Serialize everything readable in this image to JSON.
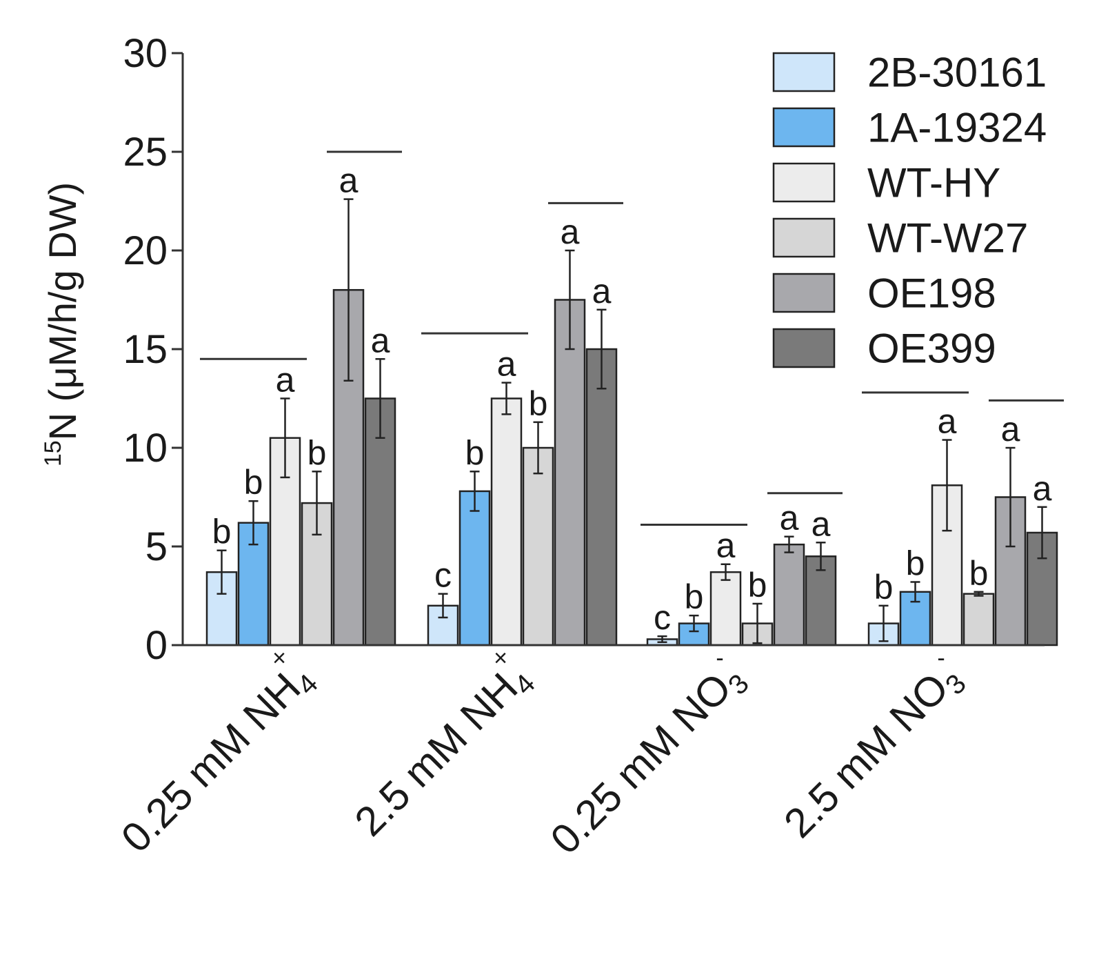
{
  "chart_data": {
    "type": "bar",
    "ylabel_sup": "15",
    "ylabel_main": "N (μM/h/g DW)",
    "ylim": [
      0,
      30
    ],
    "yticks": [
      0,
      5,
      10,
      15,
      20,
      25,
      30
    ],
    "categories": [
      {
        "prefix": "0.25 mM NH",
        "sub": "4",
        "sup": "+"
      },
      {
        "prefix": "2.5 mM NH",
        "sub": "4",
        "sup": "+"
      },
      {
        "prefix": "0.25 mM NO",
        "sub": "3",
        "sup": "-"
      },
      {
        "prefix": "2.5 mM NO",
        "sub": "3",
        "sup": "-"
      }
    ],
    "series": [
      {
        "name": "2B-30161",
        "color": "#cfe6fa",
        "values": [
          3.7,
          2.0,
          0.3,
          1.1
        ],
        "errors": [
          1.1,
          0.6,
          0.15,
          0.9
        ],
        "letters": [
          "b",
          "c",
          "c",
          "b"
        ]
      },
      {
        "name": "1A-19324",
        "color": "#6db6ef",
        "values": [
          6.2,
          7.8,
          1.1,
          2.7
        ],
        "errors": [
          1.1,
          1.0,
          0.4,
          0.5
        ],
        "letters": [
          "b",
          "b",
          "b",
          "b"
        ]
      },
      {
        "name": "WT-HY",
        "color": "#ececec",
        "values": [
          10.5,
          12.5,
          3.7,
          8.1
        ],
        "errors": [
          2.0,
          0.8,
          0.4,
          2.3
        ],
        "letters": [
          "a",
          "a",
          "a",
          "a"
        ]
      },
      {
        "name": "WT-W27",
        "color": "#d6d6d6",
        "values": [
          7.2,
          10.0,
          1.1,
          2.6
        ],
        "errors": [
          1.6,
          1.3,
          1.0,
          0.1
        ],
        "letters": [
          "b",
          "b",
          "b",
          "b"
        ]
      },
      {
        "name": "OE198",
        "color": "#a8a8ac",
        "values": [
          18.0,
          17.5,
          5.1,
          7.5
        ],
        "errors": [
          4.6,
          2.5,
          0.4,
          2.5
        ],
        "letters": [
          "a",
          "a",
          "a",
          "a"
        ]
      },
      {
        "name": "OE399",
        "color": "#7a7a7a",
        "values": [
          12.5,
          15.0,
          4.5,
          5.7
        ],
        "errors": [
          2.0,
          2.0,
          0.7,
          1.3
        ],
        "letters": [
          "a",
          "a",
          "a",
          "a"
        ]
      }
    ],
    "group_lines": [
      {
        "category": 0,
        "from_series": 0,
        "to_series": 2,
        "y": 14.5
      },
      {
        "category": 0,
        "from_series": 4,
        "to_series": 5,
        "y": 25.0
      },
      {
        "category": 1,
        "from_series": 0,
        "to_series": 2,
        "y": 15.8
      },
      {
        "category": 1,
        "from_series": 4,
        "to_series": 5,
        "y": 22.4
      },
      {
        "category": 2,
        "from_series": 0,
        "to_series": 2,
        "y": 6.1
      },
      {
        "category": 2,
        "from_series": 4,
        "to_series": 5,
        "y": 7.7
      },
      {
        "category": 3,
        "from_series": 0,
        "to_series": 2,
        "y": 12.8
      },
      {
        "category": 3,
        "from_series": 4,
        "to_series": 5,
        "y": 12.4
      }
    ],
    "legend_position": "top-right"
  }
}
